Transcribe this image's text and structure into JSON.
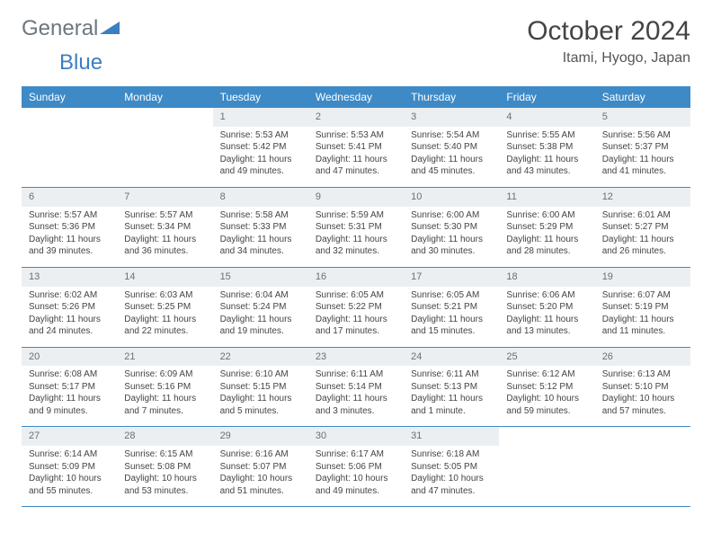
{
  "logo": {
    "word1": "General",
    "word2": "Blue"
  },
  "header": {
    "title": "October 2024",
    "location": "Itami, Hyogo, Japan"
  },
  "colors": {
    "header_bg": "#3d8ac7",
    "header_text": "#ffffff",
    "daynum_bg": "#eceff1",
    "daynum_text": "#6a6f74",
    "body_text": "#444444",
    "rule": "#3d8ac7"
  },
  "daysOfWeek": [
    "Sunday",
    "Monday",
    "Tuesday",
    "Wednesday",
    "Thursday",
    "Friday",
    "Saturday"
  ],
  "weeks": [
    [
      null,
      null,
      {
        "n": "1",
        "sr": "5:53 AM",
        "ss": "5:42 PM",
        "dl": "11 hours and 49 minutes."
      },
      {
        "n": "2",
        "sr": "5:53 AM",
        "ss": "5:41 PM",
        "dl": "11 hours and 47 minutes."
      },
      {
        "n": "3",
        "sr": "5:54 AM",
        "ss": "5:40 PM",
        "dl": "11 hours and 45 minutes."
      },
      {
        "n": "4",
        "sr": "5:55 AM",
        "ss": "5:38 PM",
        "dl": "11 hours and 43 minutes."
      },
      {
        "n": "5",
        "sr": "5:56 AM",
        "ss": "5:37 PM",
        "dl": "11 hours and 41 minutes."
      }
    ],
    [
      {
        "n": "6",
        "sr": "5:57 AM",
        "ss": "5:36 PM",
        "dl": "11 hours and 39 minutes."
      },
      {
        "n": "7",
        "sr": "5:57 AM",
        "ss": "5:34 PM",
        "dl": "11 hours and 36 minutes."
      },
      {
        "n": "8",
        "sr": "5:58 AM",
        "ss": "5:33 PM",
        "dl": "11 hours and 34 minutes."
      },
      {
        "n": "9",
        "sr": "5:59 AM",
        "ss": "5:31 PM",
        "dl": "11 hours and 32 minutes."
      },
      {
        "n": "10",
        "sr": "6:00 AM",
        "ss": "5:30 PM",
        "dl": "11 hours and 30 minutes."
      },
      {
        "n": "11",
        "sr": "6:00 AM",
        "ss": "5:29 PM",
        "dl": "11 hours and 28 minutes."
      },
      {
        "n": "12",
        "sr": "6:01 AM",
        "ss": "5:27 PM",
        "dl": "11 hours and 26 minutes."
      }
    ],
    [
      {
        "n": "13",
        "sr": "6:02 AM",
        "ss": "5:26 PM",
        "dl": "11 hours and 24 minutes."
      },
      {
        "n": "14",
        "sr": "6:03 AM",
        "ss": "5:25 PM",
        "dl": "11 hours and 22 minutes."
      },
      {
        "n": "15",
        "sr": "6:04 AM",
        "ss": "5:24 PM",
        "dl": "11 hours and 19 minutes."
      },
      {
        "n": "16",
        "sr": "6:05 AM",
        "ss": "5:22 PM",
        "dl": "11 hours and 17 minutes."
      },
      {
        "n": "17",
        "sr": "6:05 AM",
        "ss": "5:21 PM",
        "dl": "11 hours and 15 minutes."
      },
      {
        "n": "18",
        "sr": "6:06 AM",
        "ss": "5:20 PM",
        "dl": "11 hours and 13 minutes."
      },
      {
        "n": "19",
        "sr": "6:07 AM",
        "ss": "5:19 PM",
        "dl": "11 hours and 11 minutes."
      }
    ],
    [
      {
        "n": "20",
        "sr": "6:08 AM",
        "ss": "5:17 PM",
        "dl": "11 hours and 9 minutes."
      },
      {
        "n": "21",
        "sr": "6:09 AM",
        "ss": "5:16 PM",
        "dl": "11 hours and 7 minutes."
      },
      {
        "n": "22",
        "sr": "6:10 AM",
        "ss": "5:15 PM",
        "dl": "11 hours and 5 minutes."
      },
      {
        "n": "23",
        "sr": "6:11 AM",
        "ss": "5:14 PM",
        "dl": "11 hours and 3 minutes."
      },
      {
        "n": "24",
        "sr": "6:11 AM",
        "ss": "5:13 PM",
        "dl": "11 hours and 1 minute."
      },
      {
        "n": "25",
        "sr": "6:12 AM",
        "ss": "5:12 PM",
        "dl": "10 hours and 59 minutes."
      },
      {
        "n": "26",
        "sr": "6:13 AM",
        "ss": "5:10 PM",
        "dl": "10 hours and 57 minutes."
      }
    ],
    [
      {
        "n": "27",
        "sr": "6:14 AM",
        "ss": "5:09 PM",
        "dl": "10 hours and 55 minutes."
      },
      {
        "n": "28",
        "sr": "6:15 AM",
        "ss": "5:08 PM",
        "dl": "10 hours and 53 minutes."
      },
      {
        "n": "29",
        "sr": "6:16 AM",
        "ss": "5:07 PM",
        "dl": "10 hours and 51 minutes."
      },
      {
        "n": "30",
        "sr": "6:17 AM",
        "ss": "5:06 PM",
        "dl": "10 hours and 49 minutes."
      },
      {
        "n": "31",
        "sr": "6:18 AM",
        "ss": "5:05 PM",
        "dl": "10 hours and 47 minutes."
      },
      null,
      null
    ]
  ],
  "labels": {
    "sunrise": "Sunrise:",
    "sunset": "Sunset:",
    "daylight": "Daylight:"
  }
}
